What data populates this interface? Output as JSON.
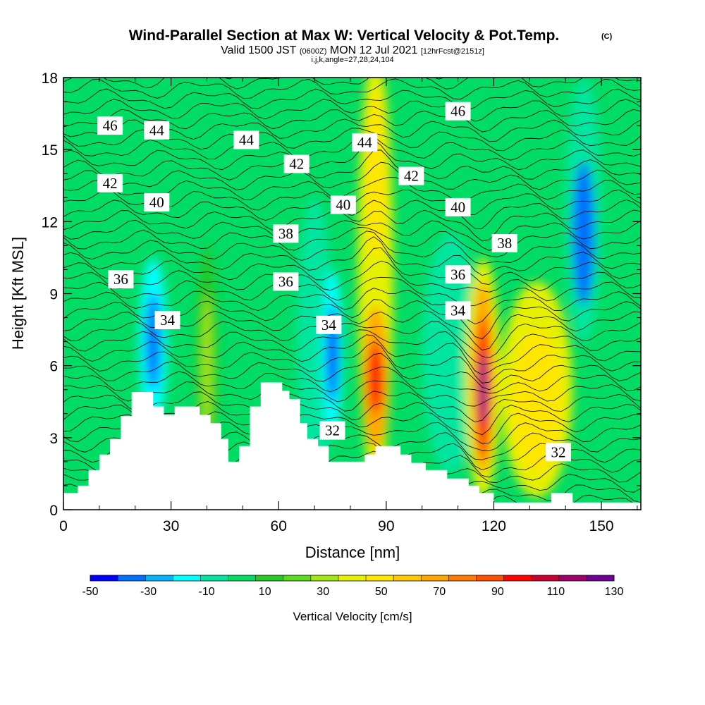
{
  "title": {
    "main": "Wind-Parallel Section at Max W: Vertical Velocity & Pot.Temp.",
    "copyright": "(C)",
    "valid_prefix": "Valid 1500 JST",
    "valid_utc": "(0600Z)",
    "valid_date": "MON 12 Jul 2021",
    "forecast": "[12hrFcst@2151z]",
    "indices": "i,j,k,angle=27,28,24,104"
  },
  "chart_data": {
    "type": "heatmap",
    "xlabel": "Distance [nm]",
    "ylabel": "Height [Kft MSL]",
    "xlim": [
      0,
      161
    ],
    "ylim": [
      0,
      18
    ],
    "x_ticks": [
      "0",
      "30",
      "60",
      "90",
      "120",
      "150"
    ],
    "y_ticks": [
      "0",
      "3",
      "6",
      "9",
      "12",
      "15",
      "18"
    ],
    "x_tick_values": [
      0,
      30,
      60,
      90,
      120,
      150
    ],
    "y_tick_values": [
      0,
      3,
      6,
      9,
      12,
      15,
      18
    ],
    "grid": false,
    "colorbar": {
      "title": "Vertical Velocity [cm/s]",
      "labels": [
        "-50",
        "-30",
        "-10",
        "10",
        "30",
        "50",
        "70",
        "90",
        "110",
        "130"
      ],
      "levels": [
        -50,
        -40,
        -30,
        -20,
        -10,
        0,
        10,
        20,
        30,
        40,
        50,
        60,
        70,
        80,
        90,
        100,
        110,
        120,
        130
      ],
      "colors": [
        "#0000ff",
        "#0070ff",
        "#00b4ff",
        "#00ffff",
        "#00e6a0",
        "#00dc64",
        "#28c828",
        "#5adc1e",
        "#a5e614",
        "#e6f000",
        "#ffe600",
        "#ffc800",
        "#ffa500",
        "#ff7800",
        "#ff5000",
        "#ff0000",
        "#c80032",
        "#a0006e",
        "#6e0096"
      ]
    },
    "vertical_velocity_features": [
      {
        "x": 9,
        "y": 16,
        "value": 5
      },
      {
        "x": 40,
        "y": 6,
        "value": 30
      },
      {
        "x": 70,
        "y": 7,
        "value": -5
      },
      {
        "x": 25,
        "y": 7,
        "value": -40
      },
      {
        "x": 75,
        "y": 6.5,
        "value": -45
      },
      {
        "x": 87,
        "y": 5.5,
        "value": 100
      },
      {
        "x": 87,
        "y": 14,
        "value": 55
      },
      {
        "x": 117,
        "y": 5,
        "value": 130
      },
      {
        "x": 132,
        "y": 4.5,
        "value": 50
      },
      {
        "x": 145,
        "y": 11.5,
        "value": -40
      }
    ],
    "potential_temperature_labels": [
      {
        "text": "46",
        "x": 13,
        "y": 16.0
      },
      {
        "text": "44",
        "x": 26,
        "y": 15.8
      },
      {
        "text": "44",
        "x": 51,
        "y": 15.4
      },
      {
        "text": "44",
        "x": 84,
        "y": 15.3
      },
      {
        "text": "46",
        "x": 110,
        "y": 16.6
      },
      {
        "text": "42",
        "x": 13,
        "y": 13.6
      },
      {
        "text": "42",
        "x": 65,
        "y": 14.4
      },
      {
        "text": "42",
        "x": 97,
        "y": 13.9
      },
      {
        "text": "40",
        "x": 26,
        "y": 12.8
      },
      {
        "text": "40",
        "x": 78,
        "y": 12.7
      },
      {
        "text": "40",
        "x": 110,
        "y": 12.6
      },
      {
        "text": "38",
        "x": 62,
        "y": 11.5
      },
      {
        "text": "38",
        "x": 123,
        "y": 11.1
      },
      {
        "text": "36",
        "x": 16,
        "y": 9.6
      },
      {
        "text": "36",
        "x": 62,
        "y": 9.5
      },
      {
        "text": "36",
        "x": 110,
        "y": 9.8
      },
      {
        "text": "34",
        "x": 29,
        "y": 7.9
      },
      {
        "text": "34",
        "x": 74,
        "y": 7.7
      },
      {
        "text": "34",
        "x": 110,
        "y": 8.3
      },
      {
        "text": "32",
        "x": 75,
        "y": 3.3
      },
      {
        "text": "32",
        "x": 138,
        "y": 2.4
      }
    ],
    "terrain_profile": [
      [
        0,
        0.7
      ],
      [
        4,
        0.7
      ],
      [
        4,
        1.0
      ],
      [
        7,
        1.0
      ],
      [
        7,
        1.65
      ],
      [
        10,
        1.65
      ],
      [
        10,
        2.3
      ],
      [
        13,
        2.3
      ],
      [
        13,
        2.95
      ],
      [
        16,
        2.95
      ],
      [
        16,
        3.9
      ],
      [
        19,
        3.9
      ],
      [
        19,
        4.9
      ],
      [
        25,
        4.9
      ],
      [
        25,
        4.3
      ],
      [
        28,
        4.3
      ],
      [
        28,
        3.95
      ],
      [
        31,
        3.95
      ],
      [
        31,
        4.3
      ],
      [
        38,
        4.3
      ],
      [
        38,
        3.95
      ],
      [
        41,
        3.95
      ],
      [
        41,
        3.6
      ],
      [
        44,
        3.6
      ],
      [
        44,
        2.95
      ],
      [
        46,
        2.95
      ],
      [
        46,
        2.0
      ],
      [
        49,
        2.0
      ],
      [
        49,
        2.65
      ],
      [
        52,
        2.65
      ],
      [
        52,
        4.3
      ],
      [
        55,
        4.3
      ],
      [
        55,
        5.3
      ],
      [
        61,
        5.3
      ],
      [
        61,
        4.95
      ],
      [
        63,
        4.95
      ],
      [
        63,
        4.6
      ],
      [
        66,
        4.6
      ],
      [
        66,
        3.6
      ],
      [
        68,
        3.6
      ],
      [
        68,
        2.95
      ],
      [
        71,
        2.95
      ],
      [
        71,
        2.65
      ],
      [
        74,
        2.65
      ],
      [
        74,
        2.0
      ],
      [
        84,
        2.0
      ],
      [
        84,
        2.3
      ],
      [
        87,
        2.3
      ],
      [
        87,
        2.65
      ],
      [
        94,
        2.65
      ],
      [
        94,
        2.3
      ],
      [
        97,
        2.3
      ],
      [
        97,
        1.95
      ],
      [
        101,
        1.95
      ],
      [
        101,
        1.65
      ],
      [
        107,
        1.65
      ],
      [
        107,
        1.3
      ],
      [
        113,
        1.3
      ],
      [
        113,
        1.0
      ],
      [
        116,
        1.0
      ],
      [
        116,
        0.7
      ],
      [
        120,
        0.7
      ],
      [
        120,
        0.3
      ],
      [
        136,
        0.3
      ],
      [
        136,
        0.7
      ],
      [
        142,
        0.7
      ],
      [
        142,
        0.3
      ],
      [
        161,
        0.3
      ],
      [
        161,
        0
      ]
    ]
  }
}
